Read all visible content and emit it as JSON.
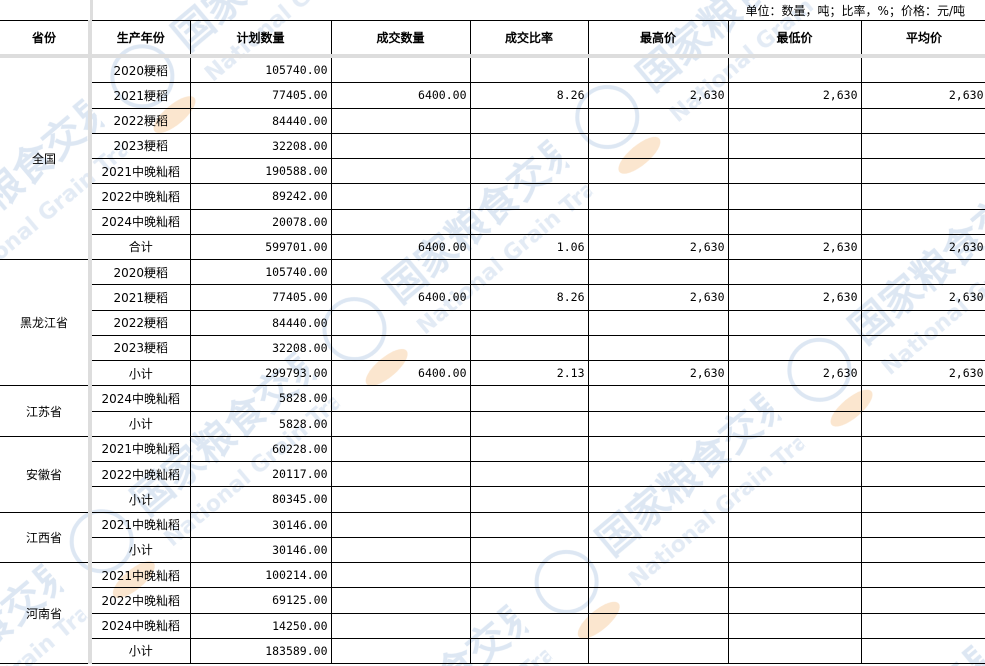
{
  "unit_note": "单位：数量，吨；比率，%；价格：元/吨",
  "watermark": {
    "cn": "国家粮食交易中心",
    "en": "National Grain Trade Center",
    "color": "#c9d9ec"
  },
  "headers": [
    "省份",
    "生产年份",
    "计划数量",
    "成交数量",
    "成交比率",
    "最高价",
    "最低价",
    "平均价"
  ],
  "groups": [
    {
      "province": "全国",
      "rows": [
        [
          "2020粳稻",
          "105740.00",
          "",
          "",
          "",
          "",
          ""
        ],
        [
          "2021粳稻",
          "77405.00",
          "6400.00",
          "8.26",
          "2,630",
          "2,630",
          "2,630"
        ],
        [
          "2022粳稻",
          "84440.00",
          "",
          "",
          "",
          "",
          ""
        ],
        [
          "2023粳稻",
          "32208.00",
          "",
          "",
          "",
          "",
          ""
        ],
        [
          "2021中晚籼稻",
          "190588.00",
          "",
          "",
          "",
          "",
          ""
        ],
        [
          "2022中晚籼稻",
          "89242.00",
          "",
          "",
          "",
          "",
          ""
        ],
        [
          "2024中晚籼稻",
          "20078.00",
          "",
          "",
          "",
          "",
          ""
        ],
        [
          "合计",
          "599701.00",
          "6400.00",
          "1.06",
          "2,630",
          "2,630",
          "2,630"
        ]
      ]
    },
    {
      "province": "黑龙江省",
      "rows": [
        [
          "2020粳稻",
          "105740.00",
          "",
          "",
          "",
          "",
          ""
        ],
        [
          "2021粳稻",
          "77405.00",
          "6400.00",
          "8.26",
          "2,630",
          "2,630",
          "2,630"
        ],
        [
          "2022粳稻",
          "84440.00",
          "",
          "",
          "",
          "",
          ""
        ],
        [
          "2023粳稻",
          "32208.00",
          "",
          "",
          "",
          "",
          ""
        ],
        [
          "小计",
          "299793.00",
          "6400.00",
          "2.13",
          "2,630",
          "2,630",
          "2,630"
        ]
      ]
    },
    {
      "province": "江苏省",
      "rows": [
        [
          "2024中晚籼稻",
          "5828.00",
          "",
          "",
          "",
          "",
          ""
        ],
        [
          "小计",
          "5828.00",
          "",
          "",
          "",
          "",
          ""
        ]
      ]
    },
    {
      "province": "安徽省",
      "rows": [
        [
          "2021中晚籼稻",
          "60228.00",
          "",
          "",
          "",
          "",
          ""
        ],
        [
          "2022中晚籼稻",
          "20117.00",
          "",
          "",
          "",
          "",
          ""
        ],
        [
          "小计",
          "80345.00",
          "",
          "",
          "",
          "",
          ""
        ]
      ]
    },
    {
      "province": "江西省",
      "rows": [
        [
          "2021中晚籼稻",
          "30146.00",
          "",
          "",
          "",
          "",
          ""
        ],
        [
          "小计",
          "30146.00",
          "",
          "",
          "",
          "",
          ""
        ]
      ]
    },
    {
      "province": "河南省",
      "rows": [
        [
          "2021中晚籼稻",
          "100214.00",
          "",
          "",
          "",
          "",
          ""
        ],
        [
          "2022中晚籼稻",
          "69125.00",
          "",
          "",
          "",
          "",
          ""
        ],
        [
          "2024中晚籼稻",
          "14250.00",
          "",
          "",
          "",
          "",
          ""
        ],
        [
          "小计",
          "183589.00",
          "",
          "",
          "",
          "",
          ""
        ]
      ]
    }
  ]
}
